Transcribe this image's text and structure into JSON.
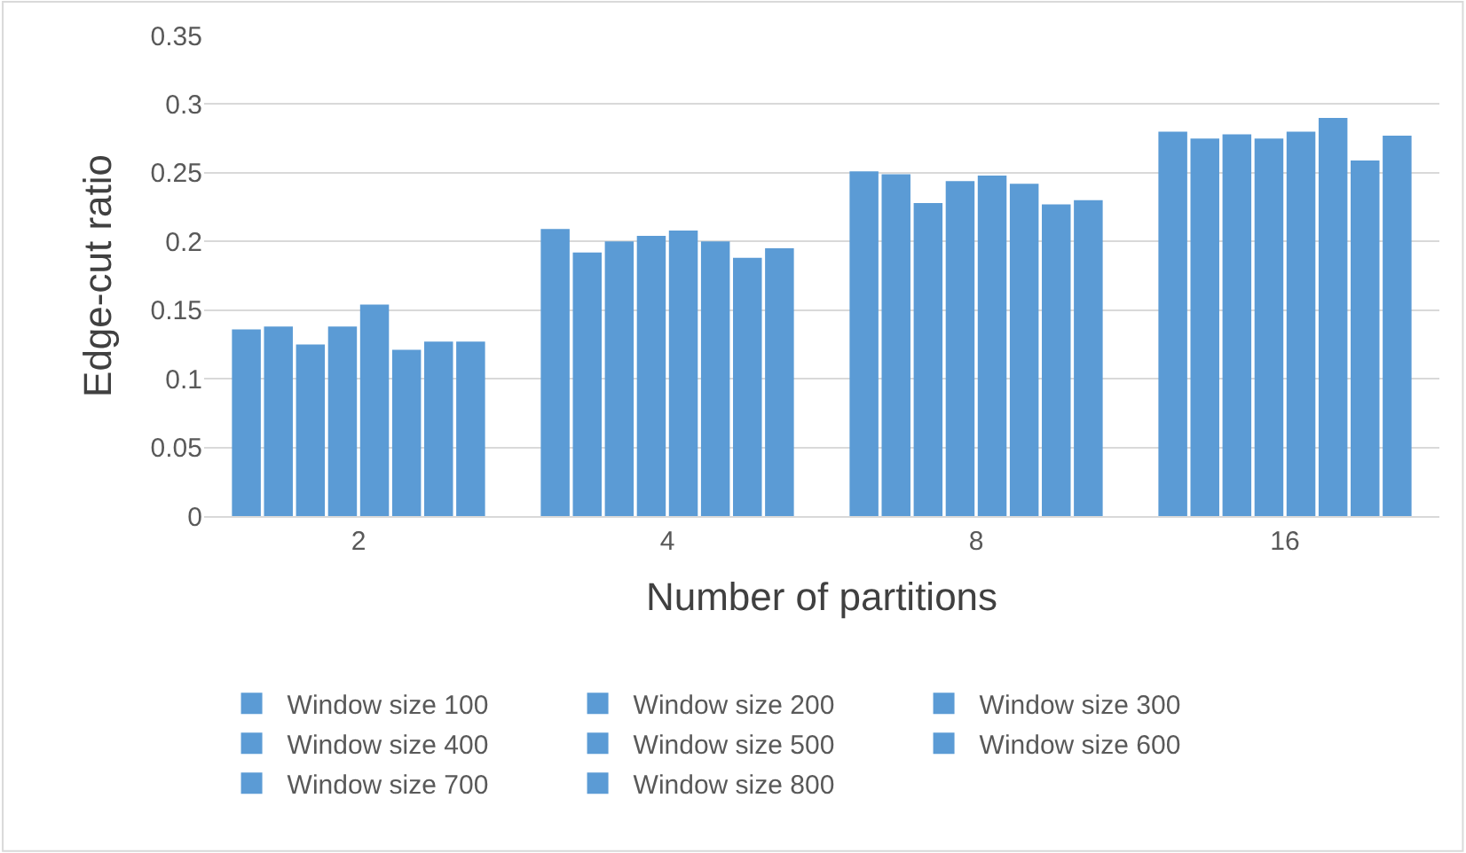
{
  "chart_data": {
    "type": "bar",
    "xlabel": "Number of partitions",
    "ylabel": "Edge-cut ratio",
    "categories": [
      "2",
      "4",
      "8",
      "16"
    ],
    "series": [
      {
        "name": "Window size 100",
        "color": "#5b9bd5",
        "values": [
          0.136,
          0.209,
          0.251,
          0.28
        ]
      },
      {
        "name": "Window size 200",
        "color": "#5b9bd5",
        "values": [
          0.138,
          0.192,
          0.249,
          0.275
        ]
      },
      {
        "name": "Window size 300",
        "color": "#5b9bd5",
        "values": [
          0.125,
          0.2,
          0.228,
          0.278
        ]
      },
      {
        "name": "Window size 400",
        "color": "#5b9bd5",
        "values": [
          0.138,
          0.204,
          0.244,
          0.275
        ]
      },
      {
        "name": "Window size 500",
        "color": "#5b9bd5",
        "values": [
          0.154,
          0.208,
          0.248,
          0.28
        ]
      },
      {
        "name": "Window size 600",
        "color": "#5b9bd5",
        "values": [
          0.121,
          0.2,
          0.242,
          0.29
        ]
      },
      {
        "name": "Window size 700",
        "color": "#5b9bd5",
        "values": [
          0.127,
          0.188,
          0.227,
          0.259
        ]
      },
      {
        "name": "Window size 800",
        "color": "#5b9bd5",
        "values": [
          0.127,
          0.195,
          0.23,
          0.277
        ]
      }
    ],
    "ylim": [
      0,
      0.35
    ],
    "yticks": [
      0,
      {
        "value": 0.05,
        "label": "0.05"
      },
      {
        "value": 0.1,
        "label": "0.1"
      },
      {
        "value": 0.15,
        "label": "0.15"
      },
      {
        "value": 0.2,
        "label": "0.2"
      },
      {
        "value": 0.25,
        "label": "0.25"
      },
      {
        "value": 0.3,
        "label": "0.3"
      },
      {
        "value": 0.35,
        "label": "0.35"
      }
    ],
    "grid": "y",
    "legend": "bottom"
  }
}
